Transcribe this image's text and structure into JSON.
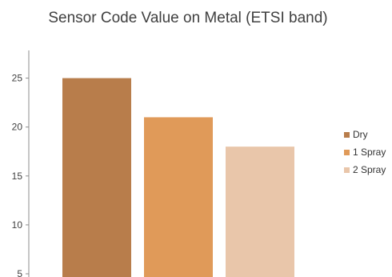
{
  "chart_data": {
    "type": "bar",
    "title": "Sensor Code Value on Metal (ETSI band)",
    "xlabel": "",
    "ylabel": "",
    "ylim": [
      5,
      27.5
    ],
    "yticks": [
      "5",
      "10",
      "15",
      "20",
      "25"
    ],
    "grid": false,
    "legend_position": "right",
    "series": [
      {
        "name": "Dry",
        "value": 25,
        "color": "#b87d4b"
      },
      {
        "name": "1 Spray",
        "value": 21,
        "color": "#e09a59"
      },
      {
        "name": "2 Spray",
        "value": 18,
        "color": "#e9c6aa"
      }
    ]
  }
}
